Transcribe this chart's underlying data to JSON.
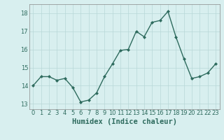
{
  "xlabel": "Humidex (Indice chaleur)",
  "x": [
    0,
    1,
    2,
    3,
    4,
    5,
    6,
    7,
    8,
    9,
    10,
    11,
    12,
    13,
    14,
    15,
    16,
    17,
    18,
    19,
    20,
    21,
    22,
    23
  ],
  "y": [
    14.0,
    14.5,
    14.5,
    14.3,
    14.4,
    13.9,
    13.1,
    13.2,
    13.6,
    14.5,
    15.2,
    15.95,
    16.0,
    17.0,
    16.7,
    17.5,
    17.6,
    18.1,
    16.7,
    15.5,
    14.4,
    14.5,
    14.7,
    15.2
  ],
  "line_color": "#2e6b5e",
  "marker": "D",
  "marker_size": 2.0,
  "bg_color": "#d8efef",
  "grid_color": "#b8d8d8",
  "ylim": [
    12.7,
    18.5
  ],
  "yticks": [
    13,
    14,
    15,
    16,
    17,
    18
  ],
  "xticks": [
    0,
    1,
    2,
    3,
    4,
    5,
    6,
    7,
    8,
    9,
    10,
    11,
    12,
    13,
    14,
    15,
    16,
    17,
    18,
    19,
    20,
    21,
    22,
    23
  ],
  "xlim": [
    -0.5,
    23.5
  ],
  "tick_fontsize": 6,
  "xlabel_fontsize": 7.5,
  "linewidth": 1.0
}
